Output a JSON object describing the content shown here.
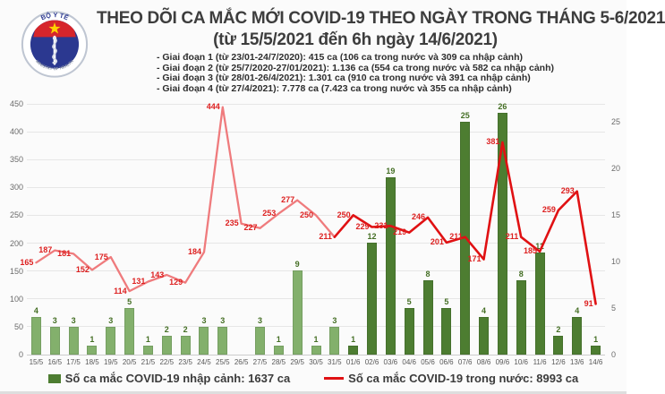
{
  "header": {
    "logo": {
      "top_text": "BỘ Y TẾ",
      "bottom_text": "MINISTRY OF HEALTH"
    },
    "title_line1": "THEO DÕI CA MẮC MỚI COVID-19 THEO NGÀY TRONG THÁNG 5-6/2021",
    "title_line2": "(từ 15/5/2021 đến 6h ngày 14/6/2021)",
    "bullets": [
      "- Giai đoạn 1 (từ 23/01-24/7/2020): 415 ca (106 ca trong nước và 309 ca nhập cảnh)",
      "- Giai đoạn 2 (từ 25/7/2020-27/01/2021): 1.136 ca (554 ca trong nước và 582 ca nhập cảnh)",
      "- Giai đoạn 3 (từ 28/01-26/4/2021): 1.301 ca (910 ca trong nước và 391 ca nhập cảnh)",
      "- Giai đoạn 4 (từ 27/4/2021): 7.778 ca (7.423 ca trong nước và 355 ca nhập cảnh)"
    ]
  },
  "chart_data": {
    "type": "bar+line",
    "categories": [
      "15/5",
      "16/5",
      "17/5",
      "18/5",
      "19/5",
      "20/5",
      "21/5",
      "22/5",
      "23/5",
      "24/5",
      "25/5",
      "26/5",
      "27/5",
      "28/5",
      "29/5",
      "30/5",
      "31/5",
      "01/6",
      "02/6",
      "03/6",
      "04/6",
      "05/6",
      "06/6",
      "07/6",
      "08/6",
      "09/6",
      "10/6",
      "11/6",
      "12/6",
      "13/6",
      "14/6"
    ],
    "series": [
      {
        "name": "Số ca mắc COVID-19 nhập cảnh",
        "type": "bar",
        "axis": "right",
        "values": [
          4,
          3,
          3,
          1,
          3,
          5,
          1,
          2,
          2,
          3,
          3,
          0,
          3,
          1,
          9,
          1,
          3,
          1,
          12,
          19,
          5,
          8,
          5,
          25,
          4,
          26,
          8,
          11,
          2,
          4,
          1
        ],
        "color_may": "#83b06c",
        "color_june": "#4d7d31",
        "label_color": "#456f25"
      },
      {
        "name": "Số ca mắc COVID-19 trong nước",
        "type": "line",
        "axis": "left",
        "values": [
          165,
          187,
          181,
          152,
          175,
          114,
          131,
          143,
          129,
          184,
          444,
          235,
          227,
          253,
          277,
          250,
          211,
          250,
          229,
          231,
          219,
          246,
          201,
          211,
          171,
          381,
          211,
          185,
          259,
          293,
          91
        ],
        "color_may": "#ef7b7d",
        "color_june": "#e01113",
        "label_color": "#dd2020"
      }
    ],
    "may_point_count": 17,
    "left_axis": {
      "min": 0,
      "max": 450,
      "ticks": [
        0,
        50,
        100,
        150,
        200,
        250,
        300,
        350,
        400,
        450
      ]
    },
    "right_axis": {
      "min": 0,
      "max": 26.93,
      "ticks": [
        0,
        5,
        10,
        15,
        20,
        25
      ]
    },
    "grid": "horizontal-only",
    "legend_position": "bottom"
  },
  "legend": [
    {
      "label": "Số ca mắc COVID-19 nhập cảnh: 1637 ca",
      "color": "#4d7d31",
      "swatch": "square"
    },
    {
      "label": "Số ca mắc COVID-19 trong nước: 8993 ca",
      "color": "#e01113",
      "swatch": "line"
    }
  ]
}
